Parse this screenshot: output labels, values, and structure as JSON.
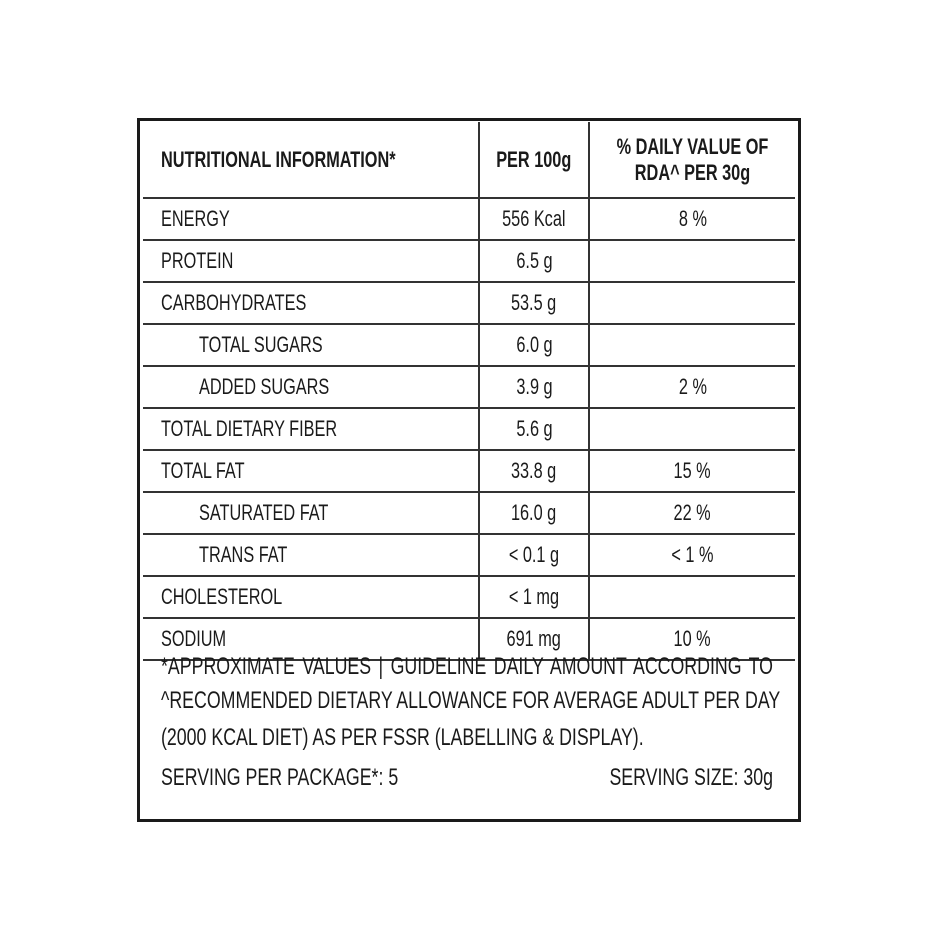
{
  "header": {
    "col1": "NUTRITIONAL INFORMATION*",
    "col2": "PER 100g",
    "col3_line1": "% DAILY VALUE OF",
    "col3_line2": "RDA^ PER 30g"
  },
  "rows": [
    {
      "name": "ENERGY",
      "per100g": "556 Kcal",
      "dv": "8 %",
      "indent": false
    },
    {
      "name": "PROTEIN",
      "per100g": "6.5 g",
      "dv": "",
      "indent": false
    },
    {
      "name": "CARBOHYDRATES",
      "per100g": "53.5 g",
      "dv": "",
      "indent": false
    },
    {
      "name": "TOTAL SUGARS",
      "per100g": "6.0 g",
      "dv": "",
      "indent": true
    },
    {
      "name": "ADDED SUGARS",
      "per100g": "3.9 g",
      "dv": "2 %",
      "indent": true
    },
    {
      "name": "TOTAL DIETARY FIBER",
      "per100g": "5.6 g",
      "dv": "",
      "indent": false
    },
    {
      "name": "TOTAL FAT",
      "per100g": "33.8 g",
      "dv": "15 %",
      "indent": false
    },
    {
      "name": "SATURATED FAT",
      "per100g": "16.0 g",
      "dv": "22 %",
      "indent": true
    },
    {
      "name": "TRANS FAT",
      "per100g": "< 0.1 g",
      "dv": "< 1 %",
      "indent": true
    },
    {
      "name": "CHOLESTEROL",
      "per100g": "< 1 mg",
      "dv": "",
      "indent": false
    },
    {
      "name": "SODIUM",
      "per100g": "691 mg",
      "dv": "10 %",
      "indent": false
    }
  ],
  "footnote": {
    "line1": "*APPROXIMATE VALUES | GUIDELINE DAILY AMOUNT ACCORDING TO",
    "line2": "^RECOMMENDED DIETARY ALLOWANCE FOR AVERAGE ADULT PER DAY",
    "line3": "(2000 KCAL DIET) AS PER FSSR (LABELLING & DISPLAY)."
  },
  "serving": {
    "per_package": "SERVING PER PACKAGE*: 5",
    "size": "SERVING SIZE: 30g"
  }
}
